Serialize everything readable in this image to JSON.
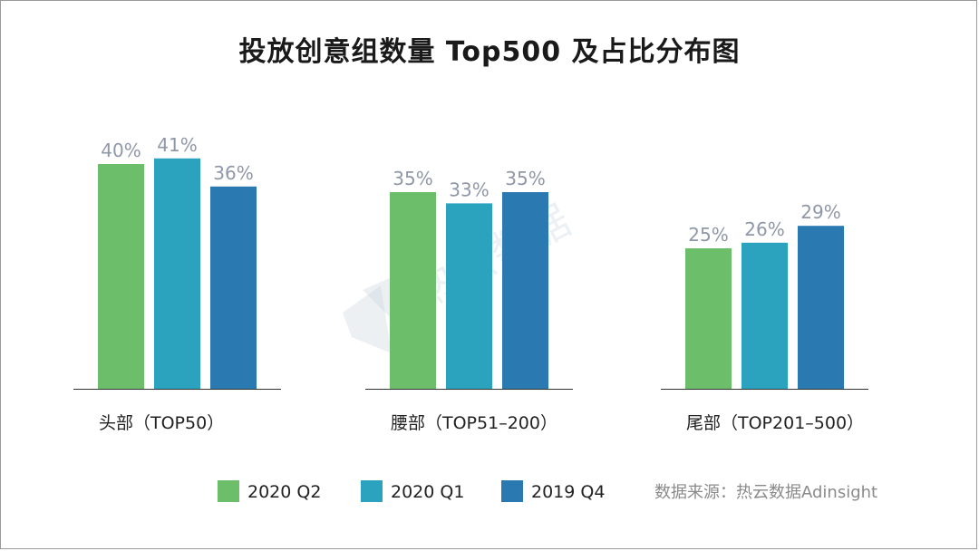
{
  "chart_data": {
    "type": "bar",
    "title": "投放创意组数量 Top500 及占比分布图",
    "categories": [
      "头部（TOP50）",
      "腰部（TOP51–200）",
      "尾部（TOP201–500）"
    ],
    "series": [
      {
        "name": "2020 Q2",
        "color": "#6dbe6b",
        "values": [
          40,
          35,
          25
        ]
      },
      {
        "name": "2020 Q1",
        "color": "#2ba3bf",
        "values": [
          41,
          33,
          26
        ]
      },
      {
        "name": "2019 Q4",
        "color": "#2a79b0",
        "values": [
          36,
          35,
          29
        ]
      }
    ],
    "value_suffix": "%",
    "ylim": [
      0,
      50
    ],
    "grid": false,
    "legend_position": "bottom"
  },
  "source_text": "数据来源：热云数据Adinsight",
  "watermark_text": "热云数据"
}
